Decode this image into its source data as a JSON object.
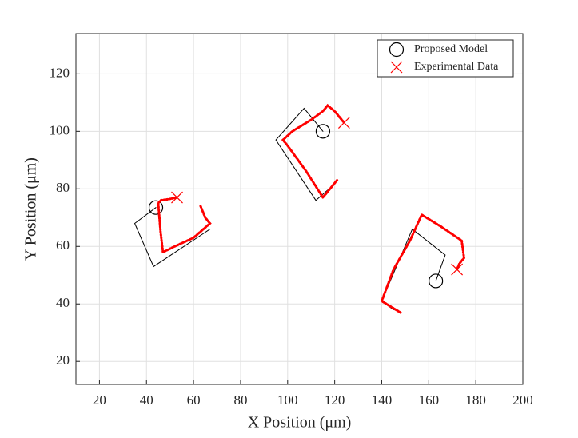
{
  "chart_data": {
    "type": "line",
    "xlabel": "X Position (μm)",
    "ylabel": "Y Position (μm)",
    "xlim": [
      10,
      200
    ],
    "xticks": [
      20,
      40,
      60,
      80,
      100,
      120,
      140,
      160,
      180,
      200
    ],
    "ylim": [
      12,
      134
    ],
    "yticks": [
      20,
      40,
      60,
      80,
      100,
      120
    ],
    "grid": true,
    "legend": "top-right",
    "series": [
      {
        "name": "Proposed Model",
        "color": "#000000",
        "marker": "o",
        "style": "solid",
        "x": [
          67,
          43,
          35,
          44,
          null,
          119,
          112,
          95,
          107,
          115,
          null,
          145,
          140,
          153,
          167,
          163
        ],
        "values": [
          66,
          53,
          68,
          73.5,
          null,
          81,
          76,
          97,
          108,
          100,
          null,
          38,
          41,
          66,
          57,
          48
        ]
      },
      {
        "name": "Experimental Data",
        "color": "#ff0000",
        "marker": "x",
        "style": "dotted",
        "x": [
          63,
          65,
          67,
          60,
          52,
          47,
          46,
          45,
          46,
          50,
          53,
          null,
          121,
          118,
          115,
          108,
          100,
          98,
          102,
          110,
          115,
          117,
          120,
          124,
          null,
          148,
          144,
          140,
          145,
          152,
          157,
          165,
          174,
          175,
          173,
          172
        ],
        "values": [
          74,
          70,
          68,
          63,
          60,
          58,
          65,
          75,
          76,
          76.5,
          77,
          null,
          83,
          80,
          77,
          86,
          95,
          97,
          100,
          104,
          107,
          109,
          107,
          103,
          null,
          37,
          39,
          41,
          52,
          62,
          71,
          67,
          62,
          56,
          54,
          52
        ]
      }
    ]
  }
}
